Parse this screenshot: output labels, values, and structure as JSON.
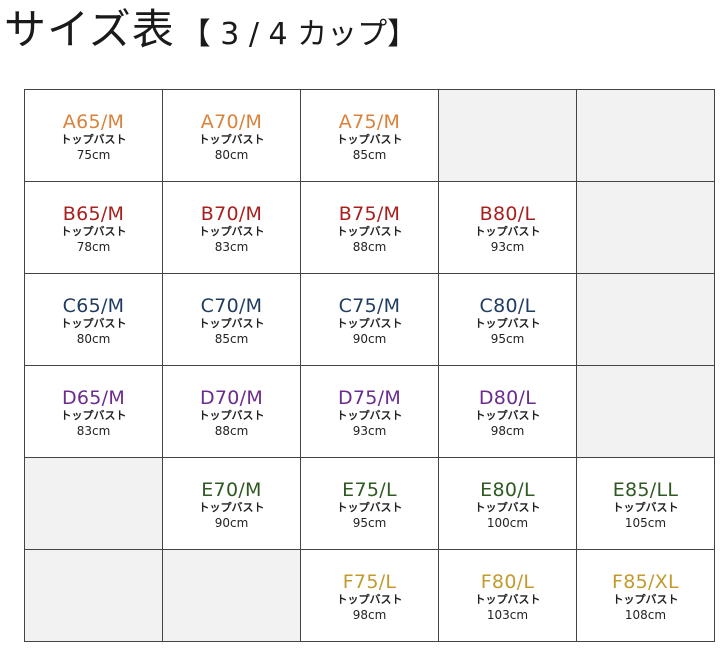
{
  "title": {
    "main": "サイズ表",
    "sub": "【 3 / 4 カップ】"
  },
  "colors": {
    "A": "#d9823b",
    "B": "#a8201e",
    "C": "#1f3b5f",
    "D": "#6b2c8e",
    "E": "#2e5a22",
    "F": "#c29a2e",
    "empty": "#f2f2f2"
  },
  "grid": {
    "rows": [
      {
        "cup": "A",
        "cells": [
          {
            "size": "A65/M",
            "label": "トップバスト",
            "value": "75cm"
          },
          {
            "size": "A70/M",
            "label": "トップバスト",
            "value": "80cm"
          },
          {
            "size": "A75/M",
            "label": "トップバスト",
            "value": "85cm"
          },
          null,
          null
        ]
      },
      {
        "cup": "B",
        "cells": [
          {
            "size": "B65/M",
            "label": "トップバスト",
            "value": "78cm"
          },
          {
            "size": "B70/M",
            "label": "トップバスト",
            "value": "83cm"
          },
          {
            "size": "B75/M",
            "label": "トップバスト",
            "value": "88cm"
          },
          {
            "size": "B80/L",
            "label": "トップバスト",
            "value": "93cm"
          },
          null
        ]
      },
      {
        "cup": "C",
        "cells": [
          {
            "size": "C65/M",
            "label": "トップバスト",
            "value": "80cm"
          },
          {
            "size": "C70/M",
            "label": "トップバスト",
            "value": "85cm"
          },
          {
            "size": "C75/M",
            "label": "トップバスト",
            "value": "90cm"
          },
          {
            "size": "C80/L",
            "label": "トップバスト",
            "value": "95cm"
          },
          null
        ]
      },
      {
        "cup": "D",
        "cells": [
          {
            "size": "D65/M",
            "label": "トップバスト",
            "value": "83cm"
          },
          {
            "size": "D70/M",
            "label": "トップバスト",
            "value": "88cm"
          },
          {
            "size": "D75/M",
            "label": "トップバスト",
            "value": "93cm"
          },
          {
            "size": "D80/L",
            "label": "トップバスト",
            "value": "98cm"
          },
          null
        ]
      },
      {
        "cup": "E",
        "cells": [
          null,
          {
            "size": "E70/M",
            "label": "トップバスト",
            "value": "90cm"
          },
          {
            "size": "E75/L",
            "label": "トップバスト",
            "value": "95cm"
          },
          {
            "size": "E80/L",
            "label": "トップバスト",
            "value": "100cm"
          },
          {
            "size": "E85/LL",
            "label": "トップバスト",
            "value": "105cm"
          }
        ]
      },
      {
        "cup": "F",
        "cells": [
          null,
          null,
          {
            "size": "F75/L",
            "label": "トップバスト",
            "value": "98cm"
          },
          {
            "size": "F80/L",
            "label": "トップバスト",
            "value": "103cm"
          },
          {
            "size": "F85/XL",
            "label": "トップバスト",
            "value": "108cm"
          }
        ]
      }
    ]
  }
}
